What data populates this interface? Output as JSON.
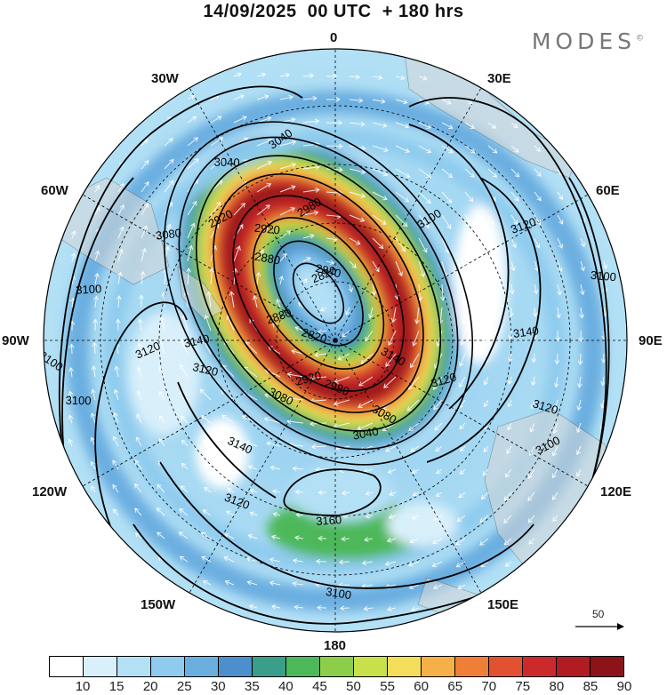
{
  "title": "14/09/2025  00 UTC  + 180 hrs",
  "logo": "MODES",
  "logo_mark": "©",
  "lon_labels": {
    "l0": "0",
    "l30e": "30E",
    "l60e": "60E",
    "l90e": "90E",
    "l120e": "120E",
    "l150e": "150E",
    "l180": "180",
    "l150w": "150W",
    "l120w": "120W",
    "l90w": "90W",
    "l60w": "60W",
    "l30w": "30W"
  },
  "contour_labels": [
    "3040",
    "3040",
    "2980",
    "2920",
    "2920",
    "2880",
    "2820",
    "2840",
    "2880",
    "2820",
    "2920",
    "2980",
    "3040",
    "3080",
    "3080",
    "3080",
    "3100",
    "3100",
    "3100",
    "3100",
    "3100",
    "3100",
    "3100",
    "3120",
    "3120",
    "3120",
    "3120",
    "3120",
    "3120",
    "3140",
    "3140",
    "3140",
    "3140",
    "3160"
  ],
  "vector_scale": "50",
  "colorbar": {
    "labels": [
      "10",
      "15",
      "20",
      "25",
      "30",
      "35",
      "40",
      "45",
      "50",
      "55",
      "60",
      "65",
      "70",
      "75",
      "80",
      "85",
      "90"
    ],
    "colors": [
      "#ffffff",
      "#d9f0fb",
      "#b3e0f5",
      "#8ecbee",
      "#6aaee0",
      "#4d8fcc",
      "#3a9f8a",
      "#4db85a",
      "#8ccd4a",
      "#c8e04a",
      "#f4dd5a",
      "#f5b048",
      "#ef7e36",
      "#e25230",
      "#cc2a2a",
      "#b01c22",
      "#8c1418"
    ]
  }
}
